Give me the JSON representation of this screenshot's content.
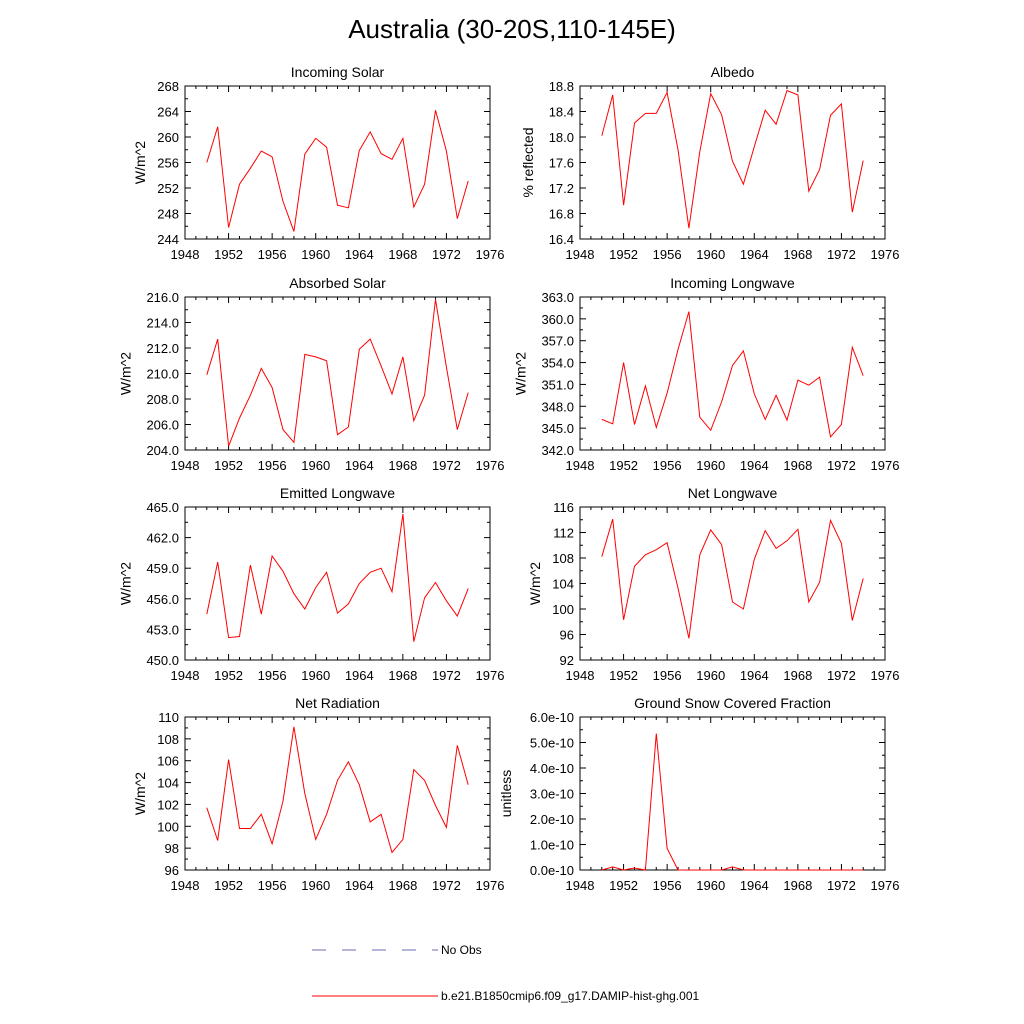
{
  "title": "Australia (30-20S,110-145E)",
  "legend": {
    "obs_label": "No Obs",
    "obs_color": "#6b6bb5",
    "model_label": "b.e21.B1850cmip6.f09_g17.DAMIP-hist-ghg.001",
    "model_color": "#ff0000"
  },
  "chart_data": [
    {
      "type": "line",
      "title": "Incoming Solar",
      "ylabel": "W/m^2",
      "xlim": [
        1948,
        1976
      ],
      "xticks": [
        1948,
        1952,
        1956,
        1960,
        1964,
        1968,
        1972,
        1976
      ],
      "ylim": [
        244,
        268
      ],
      "yticks": [
        "244",
        "248",
        "252",
        "256",
        "260",
        "264",
        "268"
      ],
      "x": [
        1950,
        1951,
        1952,
        1953,
        1954,
        1955,
        1956,
        1957,
        1958,
        1959,
        1960,
        1961,
        1962,
        1963,
        1964,
        1965,
        1966,
        1967,
        1968,
        1969,
        1970,
        1971,
        1972,
        1973,
        1974
      ],
      "values": [
        256.0,
        261.6,
        245.8,
        252.6,
        255.1,
        257.8,
        256.9,
        249.9,
        245.2,
        257.3,
        259.8,
        258.4,
        249.3,
        248.9,
        257.9,
        260.8,
        257.4,
        256.5,
        259.8,
        249.0,
        252.6,
        264.2,
        257.8,
        247.2,
        253.1
      ],
      "color": "#ff0000"
    },
    {
      "type": "line",
      "title": "Albedo",
      "ylabel": "% reflected",
      "xlim": [
        1948,
        1976
      ],
      "xticks": [
        1948,
        1952,
        1956,
        1960,
        1964,
        1968,
        1972,
        1976
      ],
      "ylim": [
        16.4,
        18.8
      ],
      "yticks": [
        "16.4",
        "16.8",
        "17.2",
        "17.6",
        "18.0",
        "18.4",
        "18.8"
      ],
      "x": [
        1950,
        1951,
        1952,
        1953,
        1954,
        1955,
        1956,
        1957,
        1958,
        1959,
        1960,
        1961,
        1962,
        1963,
        1964,
        1965,
        1966,
        1967,
        1968,
        1969,
        1970,
        1971,
        1972,
        1973,
        1974
      ],
      "values": [
        18.02,
        18.66,
        16.93,
        18.22,
        18.37,
        18.37,
        18.7,
        17.8,
        16.57,
        17.77,
        18.68,
        18.35,
        17.62,
        17.26,
        17.85,
        18.42,
        18.2,
        18.73,
        18.66,
        17.15,
        17.49,
        18.34,
        18.52,
        16.82,
        17.63
      ],
      "color": "#ff0000"
    },
    {
      "type": "line",
      "title": "Absorbed Solar",
      "ylabel": "W/m^2",
      "xlim": [
        1948,
        1976
      ],
      "xticks": [
        1948,
        1952,
        1956,
        1960,
        1964,
        1968,
        1972,
        1976
      ],
      "ylim": [
        204,
        216
      ],
      "yticks": [
        "204.0",
        "206.0",
        "208.0",
        "210.0",
        "212.0",
        "214.0",
        "216.0"
      ],
      "x": [
        1950,
        1951,
        1952,
        1953,
        1954,
        1955,
        1956,
        1957,
        1958,
        1959,
        1960,
        1961,
        1962,
        1963,
        1964,
        1965,
        1966,
        1967,
        1968,
        1969,
        1970,
        1971,
        1972,
        1973,
        1974
      ],
      "values": [
        209.9,
        212.7,
        204.3,
        206.5,
        208.3,
        210.4,
        208.9,
        205.6,
        204.6,
        211.5,
        211.3,
        211.0,
        205.2,
        205.8,
        211.9,
        212.7,
        210.6,
        208.4,
        211.3,
        206.3,
        208.3,
        215.8,
        210.5,
        205.6,
        208.5
      ],
      "color": "#ff0000"
    },
    {
      "type": "line",
      "title": "Incoming Longwave",
      "ylabel": "W/m^2",
      "xlim": [
        1948,
        1976
      ],
      "xticks": [
        1948,
        1952,
        1956,
        1960,
        1964,
        1968,
        1972,
        1976
      ],
      "ylim": [
        342,
        363
      ],
      "yticks": [
        "342.0",
        "345.0",
        "348.0",
        "351.0",
        "354.0",
        "357.0",
        "360.0",
        "363.0"
      ],
      "x": [
        1950,
        1951,
        1952,
        1953,
        1954,
        1955,
        1956,
        1957,
        1958,
        1959,
        1960,
        1961,
        1962,
        1963,
        1964,
        1965,
        1966,
        1967,
        1968,
        1969,
        1970,
        1971,
        1972,
        1973,
        1974
      ],
      "values": [
        346.2,
        345.6,
        354.0,
        345.5,
        350.8,
        345.1,
        349.8,
        355.8,
        361.0,
        346.5,
        344.7,
        348.6,
        353.6,
        355.6,
        349.7,
        346.2,
        349.5,
        346.1,
        351.6,
        350.9,
        352.0,
        343.8,
        345.5,
        356.1,
        352.2
      ],
      "color": "#ff0000"
    },
    {
      "type": "line",
      "title": "Emitted Longwave",
      "ylabel": "W/m^2",
      "xlim": [
        1948,
        1976
      ],
      "xticks": [
        1948,
        1952,
        1956,
        1960,
        1964,
        1968,
        1972,
        1976
      ],
      "ylim": [
        450,
        465
      ],
      "yticks": [
        "450.0",
        "453.0",
        "456.0",
        "459.0",
        "462.0",
        "465.0"
      ],
      "x": [
        1950,
        1951,
        1952,
        1953,
        1954,
        1955,
        1956,
        1957,
        1958,
        1959,
        1960,
        1961,
        1962,
        1963,
        1964,
        1965,
        1966,
        1967,
        1968,
        1969,
        1970,
        1971,
        1972,
        1973,
        1974
      ],
      "values": [
        454.5,
        459.6,
        452.2,
        452.3,
        459.3,
        454.5,
        460.2,
        458.7,
        456.5,
        455.0,
        457.1,
        458.6,
        454.6,
        455.5,
        457.5,
        458.6,
        459.0,
        456.7,
        464.3,
        451.8,
        456.1,
        457.6,
        455.8,
        454.3,
        457.0
      ],
      "color": "#ff0000"
    },
    {
      "type": "line",
      "title": "Net Longwave",
      "ylabel": "W/m^2",
      "xlim": [
        1948,
        1976
      ],
      "xticks": [
        1948,
        1952,
        1956,
        1960,
        1964,
        1968,
        1972,
        1976
      ],
      "ylim": [
        92,
        116
      ],
      "yticks": [
        "92",
        "96",
        "100",
        "104",
        "108",
        "112",
        "116"
      ],
      "x": [
        1950,
        1951,
        1952,
        1953,
        1954,
        1955,
        1956,
        1957,
        1958,
        1959,
        1960,
        1961,
        1962,
        1963,
        1964,
        1965,
        1966,
        1967,
        1968,
        1969,
        1970,
        1971,
        1972,
        1973,
        1974
      ],
      "values": [
        108.2,
        114.1,
        98.3,
        106.7,
        108.5,
        109.3,
        110.4,
        103.3,
        95.4,
        108.5,
        112.4,
        110.1,
        101.1,
        100.0,
        107.8,
        112.3,
        109.5,
        110.7,
        112.5,
        101.1,
        104.2,
        113.9,
        110.3,
        98.2,
        104.8
      ],
      "color": "#ff0000"
    },
    {
      "type": "line",
      "title": "Net Radiation",
      "ylabel": "W/m^2",
      "xlim": [
        1948,
        1976
      ],
      "xticks": [
        1948,
        1952,
        1956,
        1960,
        1964,
        1968,
        1972,
        1976
      ],
      "ylim": [
        96,
        110
      ],
      "yticks": [
        "96",
        "98",
        "100",
        "102",
        "104",
        "106",
        "108",
        "110"
      ],
      "x": [
        1950,
        1951,
        1952,
        1953,
        1954,
        1955,
        1956,
        1957,
        1958,
        1959,
        1960,
        1961,
        1962,
        1963,
        1964,
        1965,
        1966,
        1967,
        1968,
        1969,
        1970,
        1971,
        1972,
        1973,
        1974
      ],
      "values": [
        101.7,
        98.7,
        106.1,
        99.8,
        99.8,
        101.1,
        98.4,
        102.3,
        109.1,
        103.0,
        98.8,
        101.1,
        104.2,
        105.9,
        103.8,
        100.4,
        101.1,
        97.6,
        98.8,
        105.2,
        104.2,
        101.9,
        99.9,
        107.4,
        103.8
      ],
      "color": "#ff0000"
    },
    {
      "type": "line",
      "title": "Ground Snow Covered Fraction",
      "ylabel": "unitless",
      "xlim": [
        1948,
        1976
      ],
      "xticks": [
        1948,
        1952,
        1956,
        1960,
        1964,
        1968,
        1972,
        1976
      ],
      "ylim": [
        0,
        6e-10
      ],
      "yticks": [
        "0.0e-10",
        "1.0e-10",
        "2.0e-10",
        "3.0e-10",
        "4.0e-10",
        "5.0e-10",
        "6.0e-10"
      ],
      "x": [
        1950,
        1951,
        1952,
        1953,
        1954,
        1955,
        1956,
        1957,
        1958,
        1959,
        1960,
        1961,
        1962,
        1963,
        1964,
        1965,
        1966,
        1967,
        1968,
        1969,
        1970,
        1971,
        1972,
        1973,
        1974
      ],
      "values": [
        0,
        1.2e-11,
        0,
        8e-12,
        0,
        5.35e-10,
        8.5e-11,
        0,
        0,
        0,
        0,
        0,
        1.2e-11,
        0,
        0,
        0,
        0,
        0,
        0,
        0,
        0,
        0,
        0,
        0,
        0
      ],
      "color": "#ff0000"
    }
  ]
}
